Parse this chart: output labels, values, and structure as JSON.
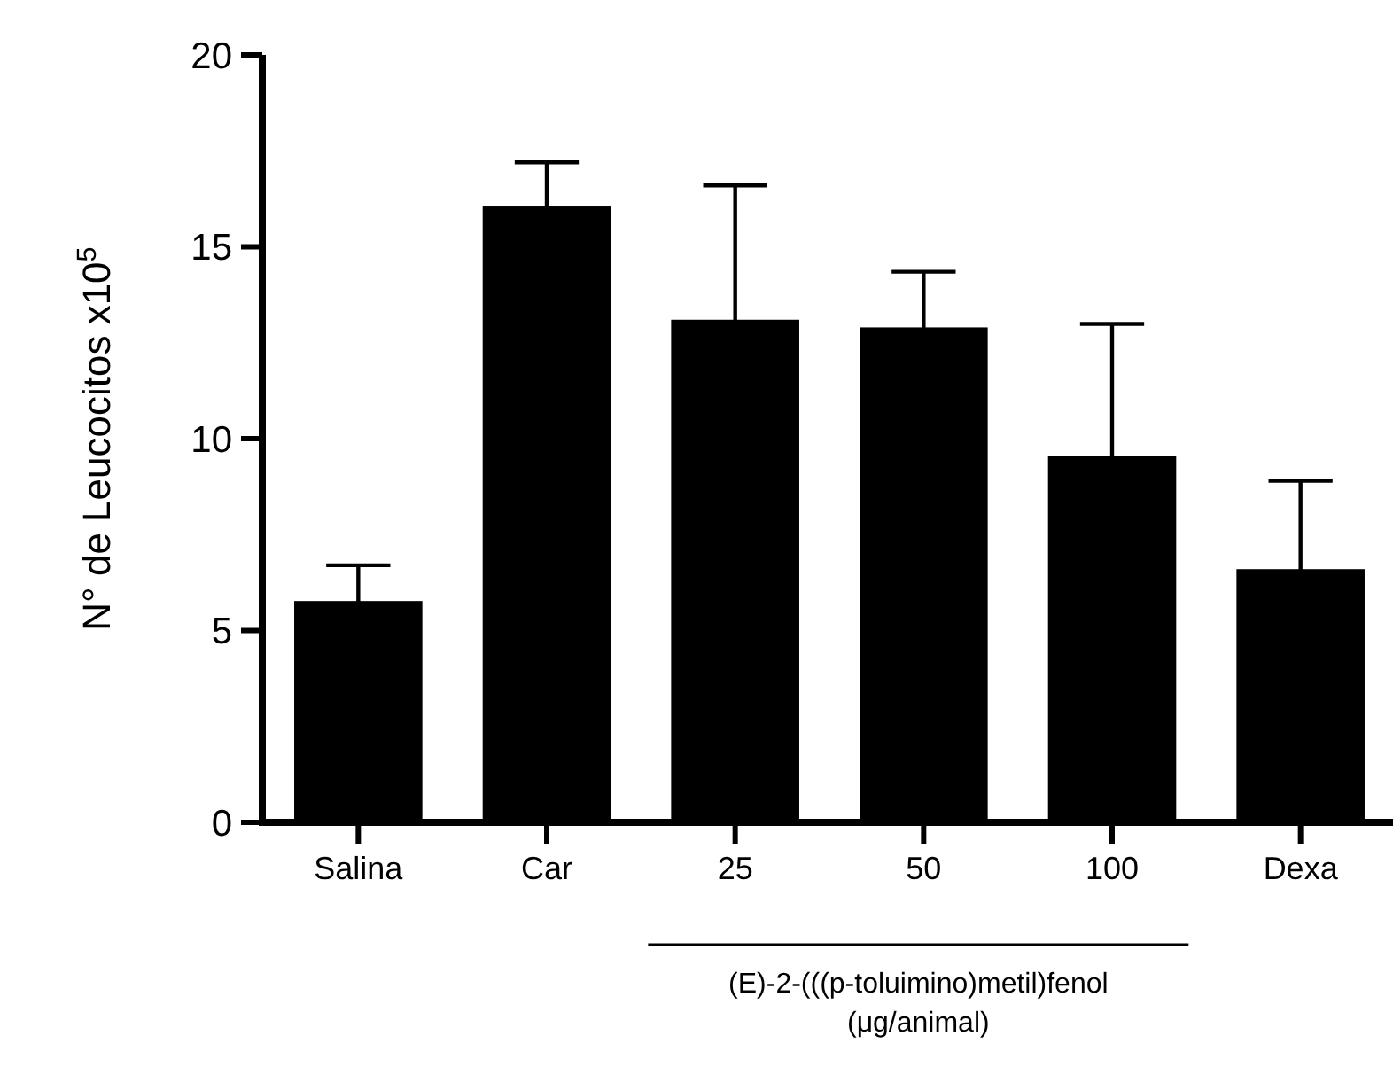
{
  "chart_data": {
    "type": "bar",
    "ylabel": "N° de Leucocitos x10$^{5}$",
    "categories": [
      "Salina",
      "Car",
      "25",
      "50",
      "100",
      "Dexa"
    ],
    "values": [
      5.77,
      16.05,
      13.1,
      12.9,
      9.54,
      6.6
    ],
    "errors": [
      0.93,
      1.15,
      3.5,
      1.45,
      3.45,
      2.3
    ],
    "color": "#000000",
    "ylim": [
      0,
      20
    ],
    "yticks": [
      0,
      5,
      10,
      15,
      20
    ],
    "annotations": [
      "(E)-2-(((p-toluimino)metil)fenol",
      "(μg/animal)"
    ]
  }
}
